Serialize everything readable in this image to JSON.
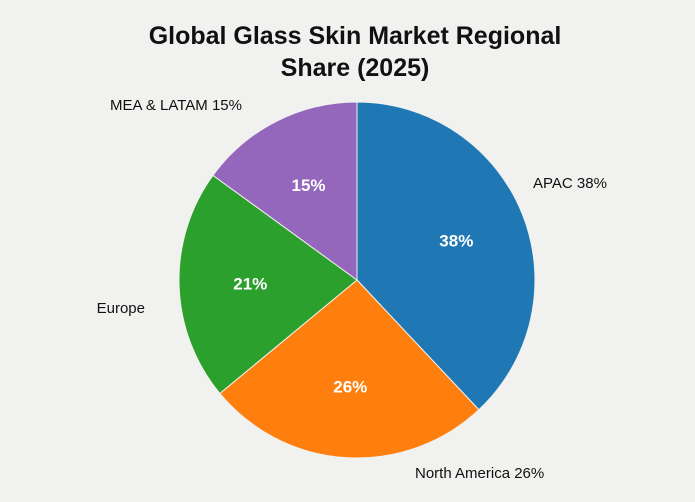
{
  "chart_data": {
    "type": "pie",
    "title_lines": [
      "Global Glass Skin Market Regional",
      "Share (2025)"
    ],
    "slices": [
      {
        "label": "APAC",
        "value": 38,
        "pct_label": "38%",
        "outer_label": "APAC 38%",
        "color": "#1f77b4"
      },
      {
        "label": "North America",
        "value": 26,
        "pct_label": "26%",
        "outer_label": "North America 26%",
        "color": "#ff7f0e"
      },
      {
        "label": "Europe",
        "value": 21,
        "pct_label": "21%",
        "outer_label": "Europe",
        "color": "#2ca02c"
      },
      {
        "label": "MEA & LATAM",
        "value": 15,
        "pct_label": "15%",
        "outer_label": "MEA & LATAM 15%",
        "color": "#9467bd"
      }
    ],
    "start_angle": "12 o'clock",
    "direction": "clockwise",
    "legend": "none"
  }
}
